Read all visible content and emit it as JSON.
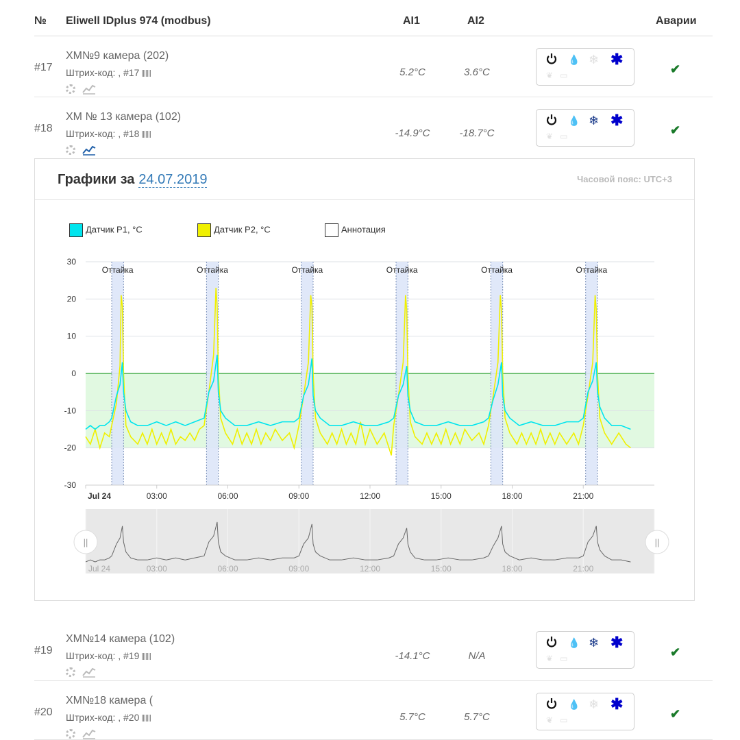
{
  "table": {
    "headers": {
      "num": "№",
      "device": "Eliwell IDplus 974 (modbus)",
      "ai1": "AI1",
      "ai2": "AI2",
      "alarms": "Аварии"
    },
    "rows": [
      {
        "num": "#17",
        "name": "ХМ№9 камера (202)",
        "barcode": "Штрих-код: , #17",
        "ai1": "5.2°C",
        "ai2": "3.6°C",
        "alarm": "✔",
        "defrost_active": false,
        "chart_open": false
      },
      {
        "num": "#18",
        "name": "ХМ № 13 камера (102)",
        "barcode": "Штрих-код: , #18",
        "ai1": "-14.9°C",
        "ai2": "-18.7°C",
        "alarm": "✔",
        "defrost_active": true,
        "chart_open": true
      },
      {
        "num": "#19",
        "name": "ХМ№14 камера (102)",
        "barcode": "Штрих-код: , #19",
        "ai1": "-14.1°C",
        "ai2": "N/A",
        "alarm": "✔",
        "defrost_active": true,
        "chart_open": false
      },
      {
        "num": "#20",
        "name": "ХМ№18 камера (",
        "barcode": "Штрих-код: , #20",
        "ai1": "5.7°C",
        "ai2": "5.7°C",
        "alarm": "✔",
        "defrost_active": false,
        "chart_open": false
      }
    ]
  },
  "chart_panel": {
    "title": "Графики за",
    "date": "24.07.2019",
    "timezone": "Часовой пояс: UTC+3"
  },
  "colors": {
    "p1": "#00e5ee",
    "p2": "#f0f000",
    "annotation_band": "#dde6f8",
    "zone": "#d9f7d9",
    "zero_line": "#4caf50",
    "alarm_ok": "#1a7a2a",
    "fan": "#0000cc",
    "power": "#111111"
  },
  "chart_data": {
    "type": "line",
    "legend": [
      {
        "name": "Датчик P1, °C",
        "color": "#00e5ee"
      },
      {
        "name": "Датчик P2, °C",
        "color": "#f0f000"
      },
      {
        "name": "Аннотация",
        "color": "#ffffff"
      }
    ],
    "ylim": [
      -30,
      30
    ],
    "y_ticks": [
      30,
      20,
      10,
      0,
      -10,
      -20,
      -30
    ],
    "x_range_hours": [
      0,
      24
    ],
    "x_ticks": [
      {
        "h": 0,
        "label": "Jul 24"
      },
      {
        "h": 3,
        "label": "03:00"
      },
      {
        "h": 6,
        "label": "06:00"
      },
      {
        "h": 9,
        "label": "09:00"
      },
      {
        "h": 12,
        "label": "12:00"
      },
      {
        "h": 15,
        "label": "15:00"
      },
      {
        "h": 18,
        "label": "18:00"
      },
      {
        "h": 21,
        "label": "21:00"
      }
    ],
    "zone": [
      -20,
      0
    ],
    "annotations": [
      {
        "label": "Оттайка",
        "start_h": 1.1,
        "end_h": 1.6
      },
      {
        "label": "Оттайка",
        "start_h": 5.1,
        "end_h": 5.6
      },
      {
        "label": "Оттайка",
        "start_h": 9.1,
        "end_h": 9.6
      },
      {
        "label": "Оттайка",
        "start_h": 13.1,
        "end_h": 13.6
      },
      {
        "label": "Оттайка",
        "start_h": 17.1,
        "end_h": 17.6
      },
      {
        "label": "Оттайка",
        "start_h": 21.1,
        "end_h": 21.6
      }
    ],
    "series": [
      {
        "name": "Датчик P1, °C",
        "points": [
          [
            0,
            -15
          ],
          [
            0.2,
            -14
          ],
          [
            0.4,
            -15
          ],
          [
            0.6,
            -14
          ],
          [
            0.8,
            -14
          ],
          [
            1.0,
            -13
          ],
          [
            1.1,
            -12
          ],
          [
            1.3,
            -6
          ],
          [
            1.45,
            -3
          ],
          [
            1.55,
            3
          ],
          [
            1.6,
            -5
          ],
          [
            1.7,
            -10
          ],
          [
            1.9,
            -13
          ],
          [
            2.2,
            -14
          ],
          [
            2.6,
            -14
          ],
          [
            3.0,
            -13
          ],
          [
            3.4,
            -14
          ],
          [
            3.8,
            -13
          ],
          [
            4.2,
            -14
          ],
          [
            4.6,
            -13
          ],
          [
            5.0,
            -12
          ],
          [
            5.2,
            -5
          ],
          [
            5.4,
            -2
          ],
          [
            5.55,
            5
          ],
          [
            5.6,
            -5
          ],
          [
            5.7,
            -10
          ],
          [
            5.9,
            -12
          ],
          [
            6.3,
            -14
          ],
          [
            6.8,
            -14
          ],
          [
            7.3,
            -13
          ],
          [
            7.8,
            -14
          ],
          [
            8.3,
            -13
          ],
          [
            8.8,
            -13
          ],
          [
            9.0,
            -12
          ],
          [
            9.2,
            -6
          ],
          [
            9.4,
            -3
          ],
          [
            9.55,
            4
          ],
          [
            9.6,
            -6
          ],
          [
            9.7,
            -10
          ],
          [
            9.9,
            -12
          ],
          [
            10.3,
            -14
          ],
          [
            10.8,
            -14
          ],
          [
            11.3,
            -13
          ],
          [
            11.8,
            -14
          ],
          [
            12.3,
            -14
          ],
          [
            12.8,
            -13
          ],
          [
            13.0,
            -12
          ],
          [
            13.2,
            -6
          ],
          [
            13.4,
            -3
          ],
          [
            13.55,
            2
          ],
          [
            13.6,
            -6
          ],
          [
            13.7,
            -10
          ],
          [
            13.9,
            -13
          ],
          [
            14.3,
            -14
          ],
          [
            14.8,
            -14
          ],
          [
            15.3,
            -13
          ],
          [
            15.8,
            -14
          ],
          [
            16.3,
            -14
          ],
          [
            16.8,
            -13
          ],
          [
            17.0,
            -12
          ],
          [
            17.2,
            -7
          ],
          [
            17.4,
            -3
          ],
          [
            17.55,
            3
          ],
          [
            17.6,
            -6
          ],
          [
            17.7,
            -10
          ],
          [
            17.9,
            -12
          ],
          [
            18.3,
            -14
          ],
          [
            18.8,
            -13
          ],
          [
            19.3,
            -14
          ],
          [
            19.8,
            -14
          ],
          [
            20.3,
            -13
          ],
          [
            20.8,
            -13
          ],
          [
            21.0,
            -12
          ],
          [
            21.2,
            -5
          ],
          [
            21.4,
            -2
          ],
          [
            21.55,
            3
          ],
          [
            21.6,
            -5
          ],
          [
            21.7,
            -9
          ],
          [
            21.9,
            -12
          ],
          [
            22.2,
            -14
          ],
          [
            22.6,
            -14
          ],
          [
            23.0,
            -15
          ]
        ]
      },
      {
        "name": "Датчик P2, °C",
        "points": [
          [
            0,
            -17
          ],
          [
            0.2,
            -19
          ],
          [
            0.4,
            -15
          ],
          [
            0.6,
            -20
          ],
          [
            0.8,
            -16
          ],
          [
            1.0,
            -17
          ],
          [
            1.1,
            -14
          ],
          [
            1.3,
            -8
          ],
          [
            1.45,
            2
          ],
          [
            1.5,
            21
          ],
          [
            1.55,
            18
          ],
          [
            1.6,
            0
          ],
          [
            1.7,
            -14
          ],
          [
            1.9,
            -17
          ],
          [
            2.2,
            -19
          ],
          [
            2.4,
            -16
          ],
          [
            2.6,
            -19
          ],
          [
            2.8,
            -15
          ],
          [
            3.0,
            -19
          ],
          [
            3.2,
            -16
          ],
          [
            3.4,
            -19
          ],
          [
            3.6,
            -15
          ],
          [
            3.8,
            -19
          ],
          [
            4.0,
            -17
          ],
          [
            4.2,
            -18
          ],
          [
            4.4,
            -16
          ],
          [
            4.6,
            -18
          ],
          [
            4.8,
            -15
          ],
          [
            5.0,
            -14
          ],
          [
            5.2,
            -5
          ],
          [
            5.4,
            5
          ],
          [
            5.5,
            23
          ],
          [
            5.55,
            18
          ],
          [
            5.6,
            0
          ],
          [
            5.7,
            -12
          ],
          [
            5.9,
            -16
          ],
          [
            6.2,
            -19
          ],
          [
            6.4,
            -15
          ],
          [
            6.6,
            -19
          ],
          [
            6.8,
            -16
          ],
          [
            7.0,
            -19
          ],
          [
            7.2,
            -15
          ],
          [
            7.4,
            -19
          ],
          [
            7.6,
            -16
          ],
          [
            7.8,
            -18
          ],
          [
            8.0,
            -15
          ],
          [
            8.3,
            -18
          ],
          [
            8.6,
            -16
          ],
          [
            8.8,
            -20
          ],
          [
            9.0,
            -14
          ],
          [
            9.2,
            -6
          ],
          [
            9.4,
            3
          ],
          [
            9.5,
            21
          ],
          [
            9.55,
            18
          ],
          [
            9.6,
            0
          ],
          [
            9.7,
            -12
          ],
          [
            9.9,
            -16
          ],
          [
            10.2,
            -19
          ],
          [
            10.4,
            -16
          ],
          [
            10.6,
            -19
          ],
          [
            10.8,
            -15
          ],
          [
            11.0,
            -19
          ],
          [
            11.2,
            -16
          ],
          [
            11.4,
            -19
          ],
          [
            11.6,
            -13
          ],
          [
            11.8,
            -19
          ],
          [
            12.0,
            -15
          ],
          [
            12.3,
            -19
          ],
          [
            12.6,
            -16
          ],
          [
            12.9,
            -22
          ],
          [
            13.0,
            -14
          ],
          [
            13.2,
            -6
          ],
          [
            13.4,
            3
          ],
          [
            13.5,
            21
          ],
          [
            13.55,
            17
          ],
          [
            13.6,
            0
          ],
          [
            13.7,
            -13
          ],
          [
            13.9,
            -17
          ],
          [
            14.2,
            -19
          ],
          [
            14.4,
            -16
          ],
          [
            14.6,
            -19
          ],
          [
            14.8,
            -16
          ],
          [
            15.0,
            -19
          ],
          [
            15.2,
            -15
          ],
          [
            15.4,
            -19
          ],
          [
            15.6,
            -16
          ],
          [
            15.8,
            -19
          ],
          [
            16.0,
            -15
          ],
          [
            16.3,
            -18
          ],
          [
            16.6,
            -16
          ],
          [
            16.8,
            -19
          ],
          [
            17.0,
            -14
          ],
          [
            17.2,
            -6
          ],
          [
            17.4,
            3
          ],
          [
            17.5,
            21
          ],
          [
            17.55,
            17
          ],
          [
            17.6,
            0
          ],
          [
            17.7,
            -12
          ],
          [
            17.9,
            -16
          ],
          [
            18.2,
            -19
          ],
          [
            18.4,
            -16
          ],
          [
            18.6,
            -19
          ],
          [
            18.8,
            -16
          ],
          [
            19.0,
            -19
          ],
          [
            19.2,
            -15
          ],
          [
            19.4,
            -19
          ],
          [
            19.6,
            -16
          ],
          [
            19.8,
            -19
          ],
          [
            20.0,
            -16
          ],
          [
            20.3,
            -19
          ],
          [
            20.6,
            -16
          ],
          [
            20.8,
            -19
          ],
          [
            21.0,
            -14
          ],
          [
            21.2,
            -6
          ],
          [
            21.4,
            3
          ],
          [
            21.5,
            21
          ],
          [
            21.55,
            17
          ],
          [
            21.6,
            0
          ],
          [
            21.7,
            -12
          ],
          [
            21.9,
            -16
          ],
          [
            22.2,
            -19
          ],
          [
            22.5,
            -16
          ],
          [
            22.8,
            -19
          ],
          [
            23.0,
            -20
          ]
        ]
      }
    ],
    "navigator": {
      "x_ticks": [
        "Jul 24",
        "03:00",
        "06:00",
        "09:00",
        "12:00",
        "15:00",
        "18:00",
        "21:00"
      ]
    }
  }
}
